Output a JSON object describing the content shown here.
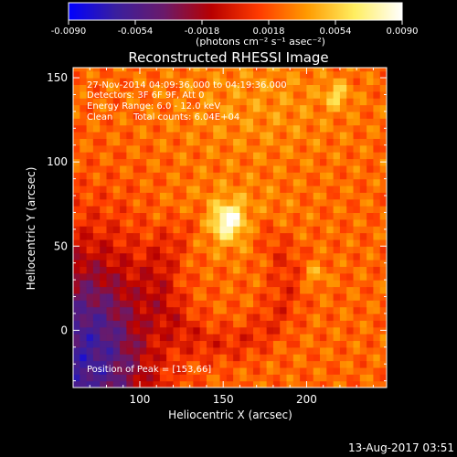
{
  "chart_data": {
    "type": "heatmap",
    "title": "Reconstructed RHESSI Image",
    "xlabel": "Heliocentric X (arcsec)",
    "ylabel": "Heliocentric Y (arcsec)",
    "xlim": [
      60,
      248
    ],
    "ylim": [
      -34,
      156
    ],
    "x_ticks": [
      100,
      150,
      200
    ],
    "y_ticks": [
      0,
      50,
      100,
      150
    ],
    "colorbar": {
      "range": [
        -0.009,
        0.009
      ],
      "ticks": [
        "-0.0090",
        "-0.0054",
        "-0.0018",
        "0.0018",
        "0.0054",
        "0.0090"
      ],
      "unit_label": "(photons cm⁻² s⁻¹ asec⁻²)",
      "colors": [
        "#0000ff",
        "#3a1f9e",
        "#6a1a6a",
        "#b80000",
        "#ff3b00",
        "#ff9a00",
        "#ffee60",
        "#ffffff"
      ]
    },
    "annotations": {
      "time": "27-Nov-2014 04:09:36.000 to 04:19:36.000",
      "detectors": "Detectors: 3F 6F 9F, Att 0",
      "energy": "Energy Range: 6.0 - 12.0 keV",
      "method": "Clean",
      "counts": "Total counts: 6.04E+04",
      "peak": "Position of Peak = [153,66]"
    },
    "peak_position": [
      153,
      66
    ],
    "sources": [
      {
        "x": 153,
        "y": 66,
        "value": 0.009
      },
      {
        "x": 218,
        "y": 140,
        "value": 0.0055
      },
      {
        "x": 205,
        "y": 33,
        "value": 0.0045
      }
    ]
  },
  "footer": {
    "date": "13-Aug-2017 03:51"
  }
}
